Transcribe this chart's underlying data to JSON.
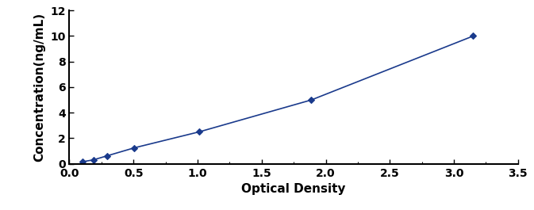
{
  "x": [
    0.1,
    0.188,
    0.294,
    0.506,
    1.012,
    1.888,
    3.15
  ],
  "y": [
    0.156,
    0.312,
    0.625,
    1.25,
    2.5,
    5.0,
    10.0
  ],
  "line_color": "#1a3a8c",
  "marker": "D",
  "marker_size": 4,
  "marker_facecolor": "#1a3a8c",
  "linewidth": 1.2,
  "xlabel": "Optical Density",
  "ylabel": "Concentration(ng/mL)",
  "xlim": [
    0,
    3.5
  ],
  "ylim": [
    0,
    12
  ],
  "xticks": [
    0.0,
    0.5,
    1.0,
    1.5,
    2.0,
    2.5,
    3.0,
    3.5
  ],
  "yticks": [
    0,
    2,
    4,
    6,
    8,
    10,
    12
  ],
  "xlabel_fontsize": 11,
  "ylabel_fontsize": 11,
  "tick_fontsize": 10,
  "xlabel_fontweight": "bold",
  "ylabel_fontweight": "bold",
  "tick_fontweight": "bold",
  "figure_bg": "#ffffff",
  "axes_bg": "#ffffff"
}
